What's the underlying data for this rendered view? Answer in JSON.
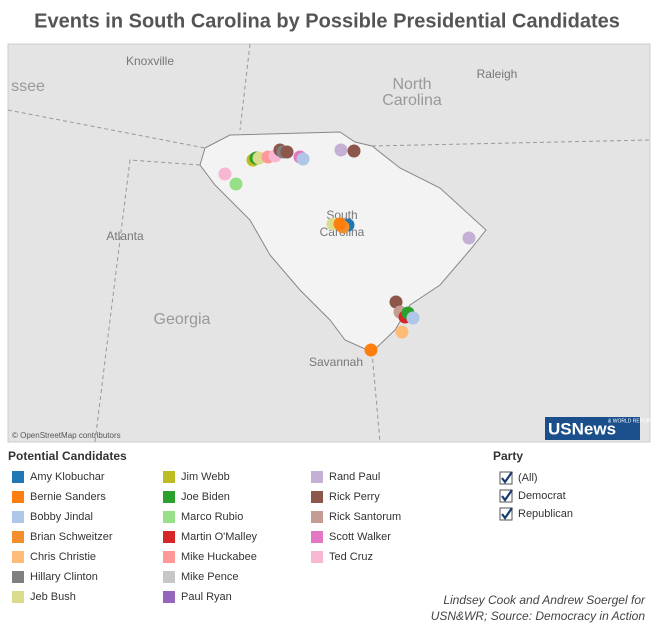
{
  "header": {
    "title": "Events in South Carolina by Possible Presidential Candidates"
  },
  "map": {
    "labels": [
      "Knoxville",
      "ssee",
      "North",
      "Carolina",
      "Raleigh",
      "Atlanta",
      "Georgia",
      "South",
      "Carolina",
      "Savannah"
    ],
    "attribution": "© OpenStreetMap contributors",
    "logo": "USNews",
    "logo_sub": "& WORLD REPORT"
  },
  "legend": {
    "title": "Potential Candidates",
    "items": [
      {
        "name": "Amy Klobuchar",
        "color": "#1f77b4"
      },
      {
        "name": "Bernie Sanders",
        "color": "#ff7f0e"
      },
      {
        "name": "Bobby Jindal",
        "color": "#aec7e8"
      },
      {
        "name": "Brian Schweitzer",
        "color": "#f28e2b"
      },
      {
        "name": "Chris Christie",
        "color": "#ffbb78"
      },
      {
        "name": "Hillary Clinton",
        "color": "#7f7f7f"
      },
      {
        "name": "Jeb Bush",
        "color": "#dbdb8d"
      },
      {
        "name": "Jim Webb",
        "color": "#bcbd22"
      },
      {
        "name": "Joe Biden",
        "color": "#2ca02c"
      },
      {
        "name": "Marco Rubio",
        "color": "#98df8a"
      },
      {
        "name": "Martin O'Malley",
        "color": "#d62728"
      },
      {
        "name": "Mike Huckabee",
        "color": "#ff9896"
      },
      {
        "name": "Mike Pence",
        "color": "#c7c7c7"
      },
      {
        "name": "Paul Ryan",
        "color": "#9467bd"
      },
      {
        "name": "Rand Paul",
        "color": "#c5b0d5"
      },
      {
        "name": "Rick Perry",
        "color": "#8c564b"
      },
      {
        "name": "Rick Santorum",
        "color": "#c49c94"
      },
      {
        "name": "Scott Walker",
        "color": "#e377c2"
      },
      {
        "name": "Ted Cruz",
        "color": "#f7b6d2"
      }
    ]
  },
  "party": {
    "title": "Party",
    "options": [
      "(All)",
      "Democrat",
      "Republican"
    ]
  },
  "source": [
    "Lindsey Cook and Andrew Soergel for",
    "USN&WR; Source: Democracy in Action"
  ]
}
